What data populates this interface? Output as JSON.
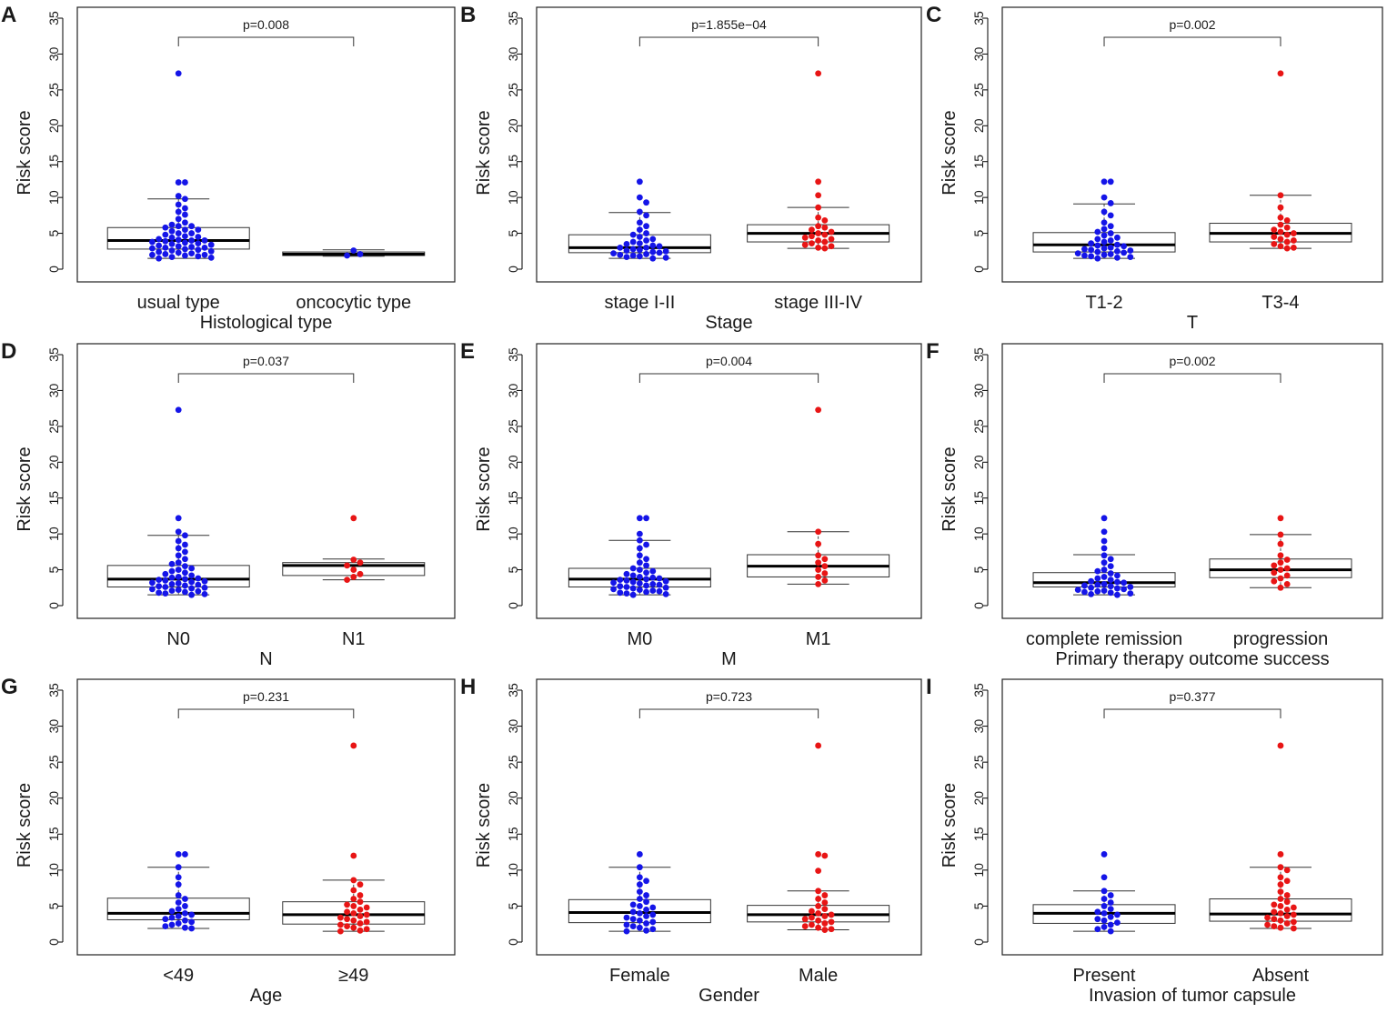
{
  "figure": {
    "colors": {
      "group1": "#1515e8",
      "group2": "#e81515",
      "line": "#000000",
      "frame": "#222222"
    }
  },
  "chart_data": [
    {
      "panel": "A",
      "type": "box-swarm",
      "title": "",
      "ylabel": "Risk score",
      "xlabel": "Histological type",
      "ylim": [
        0,
        35
      ],
      "yticks": [
        0,
        5,
        10,
        15,
        20,
        25,
        30,
        35
      ],
      "p_value": "p=0.008",
      "series": [
        {
          "name": "usual type",
          "color": "group1",
          "box": {
            "q1": 2.8,
            "median": 4.0,
            "q3": 5.8,
            "whisker_low": 1.5,
            "whisker_high": 9.8
          },
          "points": [
            27.3,
            12.1,
            12.1,
            10.2,
            9.8,
            9.0,
            8.5,
            8.0,
            7.6,
            7.0,
            6.5,
            6.2,
            6.0,
            6.0,
            5.8,
            5.5,
            5.5,
            5.3,
            5.0,
            5.0,
            4.8,
            4.6,
            4.5,
            4.4,
            4.2,
            4.1,
            4.0,
            4.0,
            3.9,
            3.8,
            3.7,
            3.6,
            3.5,
            3.4,
            3.3,
            3.2,
            3.1,
            3.0,
            3.0,
            2.9,
            2.8,
            2.7,
            2.6,
            2.5,
            2.4,
            2.3,
            2.2,
            2.1,
            2.0,
            2.0,
            1.9,
            1.8,
            1.7,
            1.6,
            1.5
          ]
        },
        {
          "name": "oncocytic type",
          "color": "group1",
          "box": {
            "q1": 1.9,
            "median": 2.1,
            "q3": 2.4,
            "whisker_low": 1.8,
            "whisker_high": 2.7
          },
          "points": [
            2.6,
            2.1,
            1.9
          ]
        }
      ]
    },
    {
      "panel": "B",
      "type": "box-swarm",
      "title": "",
      "ylabel": "Risk score",
      "xlabel": "Stage",
      "ylim": [
        0,
        35
      ],
      "yticks": [
        0,
        5,
        10,
        15,
        20,
        25,
        30,
        35
      ],
      "p_value": "p=1.855e−04",
      "series": [
        {
          "name": "stage I-II",
          "color": "group1",
          "box": {
            "q1": 2.3,
            "median": 3.0,
            "q3": 4.8,
            "whisker_low": 1.5,
            "whisker_high": 7.9
          },
          "points": [
            12.2,
            10.0,
            9.3,
            8.0,
            7.5,
            6.5,
            6.0,
            5.5,
            5.0,
            4.8,
            4.5,
            4.2,
            4.0,
            3.8,
            3.6,
            3.5,
            3.3,
            3.2,
            3.0,
            3.0,
            2.8,
            2.7,
            2.6,
            2.5,
            2.4,
            2.3,
            2.2,
            2.1,
            2.0,
            1.9,
            1.8,
            1.7,
            1.6,
            1.5
          ]
        },
        {
          "name": "stage III-IV",
          "color": "group2",
          "box": {
            "q1": 3.8,
            "median": 5.0,
            "q3": 6.2,
            "whisker_low": 2.9,
            "whisker_high": 8.6
          },
          "points": [
            27.3,
            12.2,
            10.3,
            8.6,
            7.2,
            6.8,
            6.0,
            5.8,
            5.5,
            5.2,
            5.0,
            4.8,
            4.6,
            4.4,
            4.2,
            4.0,
            3.8,
            3.6,
            3.4,
            3.2,
            3.0,
            2.9
          ]
        }
      ]
    },
    {
      "panel": "C",
      "type": "box-swarm",
      "title": "",
      "ylabel": "Risk score",
      "xlabel": "T",
      "ylim": [
        0,
        35
      ],
      "yticks": [
        0,
        5,
        10,
        15,
        20,
        25,
        30,
        35
      ],
      "p_value": "p=0.002",
      "series": [
        {
          "name": "T1-2",
          "color": "group1",
          "box": {
            "q1": 2.4,
            "median": 3.4,
            "q3": 5.1,
            "whisker_low": 1.5,
            "whisker_high": 9.1
          },
          "points": [
            12.2,
            12.2,
            10.0,
            9.2,
            8.0,
            7.5,
            6.5,
            6.0,
            5.6,
            5.2,
            5.0,
            4.7,
            4.4,
            4.2,
            4.0,
            3.8,
            3.6,
            3.4,
            3.3,
            3.2,
            3.0,
            2.9,
            2.8,
            2.7,
            2.6,
            2.5,
            2.4,
            2.3,
            2.2,
            2.1,
            2.0,
            1.9,
            1.8,
            1.7,
            1.6,
            1.5
          ]
        },
        {
          "name": "T3-4",
          "color": "group2",
          "box": {
            "q1": 3.8,
            "median": 5.0,
            "q3": 6.4,
            "whisker_low": 2.9,
            "whisker_high": 10.3
          },
          "points": [
            27.3,
            10.3,
            8.6,
            7.2,
            6.8,
            6.2,
            5.8,
            5.5,
            5.2,
            5.0,
            4.8,
            4.5,
            4.2,
            4.0,
            3.8,
            3.5,
            3.2,
            3.0,
            2.9
          ]
        }
      ]
    },
    {
      "panel": "D",
      "type": "box-swarm",
      "title": "",
      "ylabel": "Risk score",
      "xlabel": "N",
      "ylim": [
        0,
        35
      ],
      "yticks": [
        0,
        5,
        10,
        15,
        20,
        25,
        30,
        35
      ],
      "p_value": "p=0.037",
      "series": [
        {
          "name": "N0",
          "color": "group1",
          "box": {
            "q1": 2.6,
            "median": 3.7,
            "q3": 5.6,
            "whisker_low": 1.5,
            "whisker_high": 9.8
          },
          "points": [
            27.3,
            12.2,
            10.3,
            9.8,
            9.0,
            8.5,
            8.0,
            7.5,
            7.0,
            6.5,
            6.0,
            5.8,
            5.5,
            5.2,
            5.0,
            4.8,
            4.6,
            4.4,
            4.2,
            4.0,
            3.9,
            3.8,
            3.7,
            3.6,
            3.5,
            3.4,
            3.3,
            3.2,
            3.1,
            3.0,
            2.9,
            2.8,
            2.7,
            2.6,
            2.5,
            2.4,
            2.3,
            2.2,
            2.1,
            2.0,
            1.9,
            1.8,
            1.7,
            1.6,
            1.5
          ]
        },
        {
          "name": "N1",
          "color": "group2",
          "box": {
            "q1": 4.2,
            "median": 5.6,
            "q3": 6.0,
            "whisker_low": 3.6,
            "whisker_high": 6.5
          },
          "points": [
            12.2,
            6.4,
            6.0,
            5.6,
            5.0,
            4.4,
            4.0,
            3.6
          ]
        }
      ]
    },
    {
      "panel": "E",
      "type": "box-swarm",
      "title": "",
      "ylabel": "Risk score",
      "xlabel": "M",
      "ylim": [
        0,
        35
      ],
      "yticks": [
        0,
        5,
        10,
        15,
        20,
        25,
        30,
        35
      ],
      "p_value": "p=0.004",
      "series": [
        {
          "name": "M0",
          "color": "group1",
          "box": {
            "q1": 2.6,
            "median": 3.7,
            "q3": 5.2,
            "whisker_low": 1.5,
            "whisker_high": 9.1
          },
          "points": [
            12.2,
            12.2,
            10.0,
            9.1,
            8.5,
            8.0,
            7.0,
            6.5,
            6.0,
            5.6,
            5.2,
            5.0,
            4.8,
            4.6,
            4.4,
            4.2,
            4.0,
            3.9,
            3.8,
            3.7,
            3.6,
            3.5,
            3.4,
            3.3,
            3.2,
            3.1,
            3.0,
            2.9,
            2.8,
            2.7,
            2.6,
            2.5,
            2.4,
            2.3,
            2.2,
            2.1,
            2.0,
            1.9,
            1.8,
            1.7,
            1.6,
            1.5
          ]
        },
        {
          "name": "M1",
          "color": "group2",
          "box": {
            "q1": 4.0,
            "median": 5.5,
            "q3": 7.1,
            "whisker_low": 3.0,
            "whisker_high": 10.3
          },
          "points": [
            27.3,
            10.3,
            8.6,
            7.0,
            6.5,
            6.0,
            5.5,
            5.0,
            4.5,
            4.0,
            3.5,
            3.0
          ]
        }
      ]
    },
    {
      "panel": "F",
      "type": "box-swarm",
      "title": "",
      "ylabel": "Risk score",
      "xlabel": "Primary therapy outcome success",
      "ylim": [
        0,
        35
      ],
      "yticks": [
        0,
        5,
        10,
        15,
        20,
        25,
        30,
        35
      ],
      "p_value": "p=0.002",
      "series": [
        {
          "name": "complete remission",
          "color": "group1",
          "box": {
            "q1": 2.6,
            "median": 3.2,
            "q3": 4.6,
            "whisker_low": 1.5,
            "whisker_high": 7.1
          },
          "points": [
            12.2,
            10.3,
            9.0,
            8.0,
            7.0,
            6.5,
            6.0,
            5.5,
            5.0,
            4.8,
            4.5,
            4.2,
            4.0,
            3.8,
            3.6,
            3.4,
            3.3,
            3.2,
            3.0,
            2.9,
            2.8,
            2.7,
            2.6,
            2.5,
            2.4,
            2.3,
            2.2,
            2.1,
            2.0,
            1.9,
            1.8,
            1.7,
            1.6,
            1.5
          ]
        },
        {
          "name": "progression",
          "color": "group2",
          "box": {
            "q1": 3.9,
            "median": 5.0,
            "q3": 6.5,
            "whisker_low": 2.5,
            "whisker_high": 9.9
          },
          "points": [
            12.2,
            9.9,
            8.6,
            7.0,
            6.4,
            6.0,
            5.6,
            5.2,
            5.0,
            4.6,
            4.2,
            3.8,
            3.4,
            3.0,
            2.5
          ]
        }
      ]
    },
    {
      "panel": "G",
      "type": "box-swarm",
      "title": "",
      "ylabel": "Risk score",
      "xlabel": "Age",
      "ylim": [
        0,
        35
      ],
      "yticks": [
        0,
        5,
        10,
        15,
        20,
        25,
        30,
        35
      ],
      "p_value": "p=0.231",
      "series": [
        {
          "name": "<49",
          "color": "group1",
          "box": {
            "q1": 3.1,
            "median": 4.0,
            "q3": 6.1,
            "whisker_low": 1.9,
            "whisker_high": 10.4
          },
          "points": [
            12.2,
            12.2,
            10.4,
            9.0,
            8.0,
            6.5,
            6.0,
            5.5,
            5.0,
            4.6,
            4.3,
            4.0,
            3.8,
            3.6,
            3.4,
            3.2,
            3.0,
            2.8,
            2.6,
            2.4,
            2.2,
            2.0,
            1.9
          ]
        },
        {
          "name": "≥49",
          "color": "group2",
          "box": {
            "q1": 2.5,
            "median": 3.8,
            "q3": 5.6,
            "whisker_low": 1.5,
            "whisker_high": 8.6
          },
          "points": [
            27.3,
            12.0,
            8.6,
            8.0,
            7.2,
            6.5,
            6.0,
            5.6,
            5.2,
            5.0,
            4.8,
            4.5,
            4.2,
            4.0,
            3.8,
            3.6,
            3.4,
            3.2,
            3.0,
            2.8,
            2.6,
            2.4,
            2.2,
            2.0,
            1.8,
            1.6,
            1.5
          ]
        }
      ]
    },
    {
      "panel": "H",
      "type": "box-swarm",
      "title": "",
      "ylabel": "Risk score",
      "xlabel": "Gender",
      "ylim": [
        0,
        35
      ],
      "yticks": [
        0,
        5,
        10,
        15,
        20,
        25,
        30,
        35
      ],
      "p_value": "p=0.723",
      "series": [
        {
          "name": "Female",
          "color": "group1",
          "box": {
            "q1": 2.7,
            "median": 4.1,
            "q3": 5.9,
            "whisker_low": 1.5,
            "whisker_high": 10.4
          },
          "points": [
            12.2,
            10.4,
            9.0,
            8.5,
            8.0,
            7.0,
            6.5,
            6.0,
            5.6,
            5.2,
            5.0,
            4.8,
            4.5,
            4.2,
            4.0,
            3.8,
            3.6,
            3.4,
            3.2,
            3.0,
            2.8,
            2.6,
            2.4,
            2.2,
            2.0,
            1.8,
            1.6,
            1.5
          ]
        },
        {
          "name": "Male",
          "color": "group2",
          "box": {
            "q1": 2.8,
            "median": 3.8,
            "q3": 5.1,
            "whisker_low": 1.7,
            "whisker_high": 7.1
          },
          "points": [
            27.3,
            12.2,
            12.0,
            9.9,
            7.1,
            6.5,
            6.0,
            5.5,
            5.0,
            4.6,
            4.3,
            4.0,
            3.8,
            3.6,
            3.4,
            3.2,
            3.0,
            2.8,
            2.6,
            2.4,
            2.2,
            2.0,
            1.8,
            1.7
          ]
        }
      ]
    },
    {
      "panel": "I",
      "type": "box-swarm",
      "title": "",
      "ylabel": "Risk score",
      "xlabel": "Invasion of tumor capsule",
      "ylim": [
        0,
        35
      ],
      "yticks": [
        0,
        5,
        10,
        15,
        20,
        25,
        30,
        35
      ],
      "p_value": "p=0.377",
      "series": [
        {
          "name": "Present",
          "color": "group1",
          "box": {
            "q1": 2.6,
            "median": 4.0,
            "q3": 5.2,
            "whisker_low": 1.5,
            "whisker_high": 7.1
          },
          "points": [
            12.2,
            9.0,
            7.1,
            6.5,
            6.0,
            5.5,
            5.0,
            4.6,
            4.2,
            4.0,
            3.8,
            3.5,
            3.2,
            3.0,
            2.7,
            2.4,
            2.1,
            1.8,
            1.5
          ]
        },
        {
          "name": "Absent",
          "color": "group2",
          "box": {
            "q1": 2.9,
            "median": 3.9,
            "q3": 6.0,
            "whisker_low": 1.9,
            "whisker_high": 10.4
          },
          "points": [
            27.3,
            12.2,
            10.4,
            10.0,
            9.0,
            8.5,
            8.0,
            7.0,
            6.5,
            6.0,
            5.6,
            5.2,
            5.0,
            4.8,
            4.5,
            4.2,
            4.0,
            3.8,
            3.6,
            3.4,
            3.2,
            3.0,
            2.8,
            2.6,
            2.4,
            2.2,
            2.0,
            1.9
          ]
        }
      ]
    }
  ]
}
